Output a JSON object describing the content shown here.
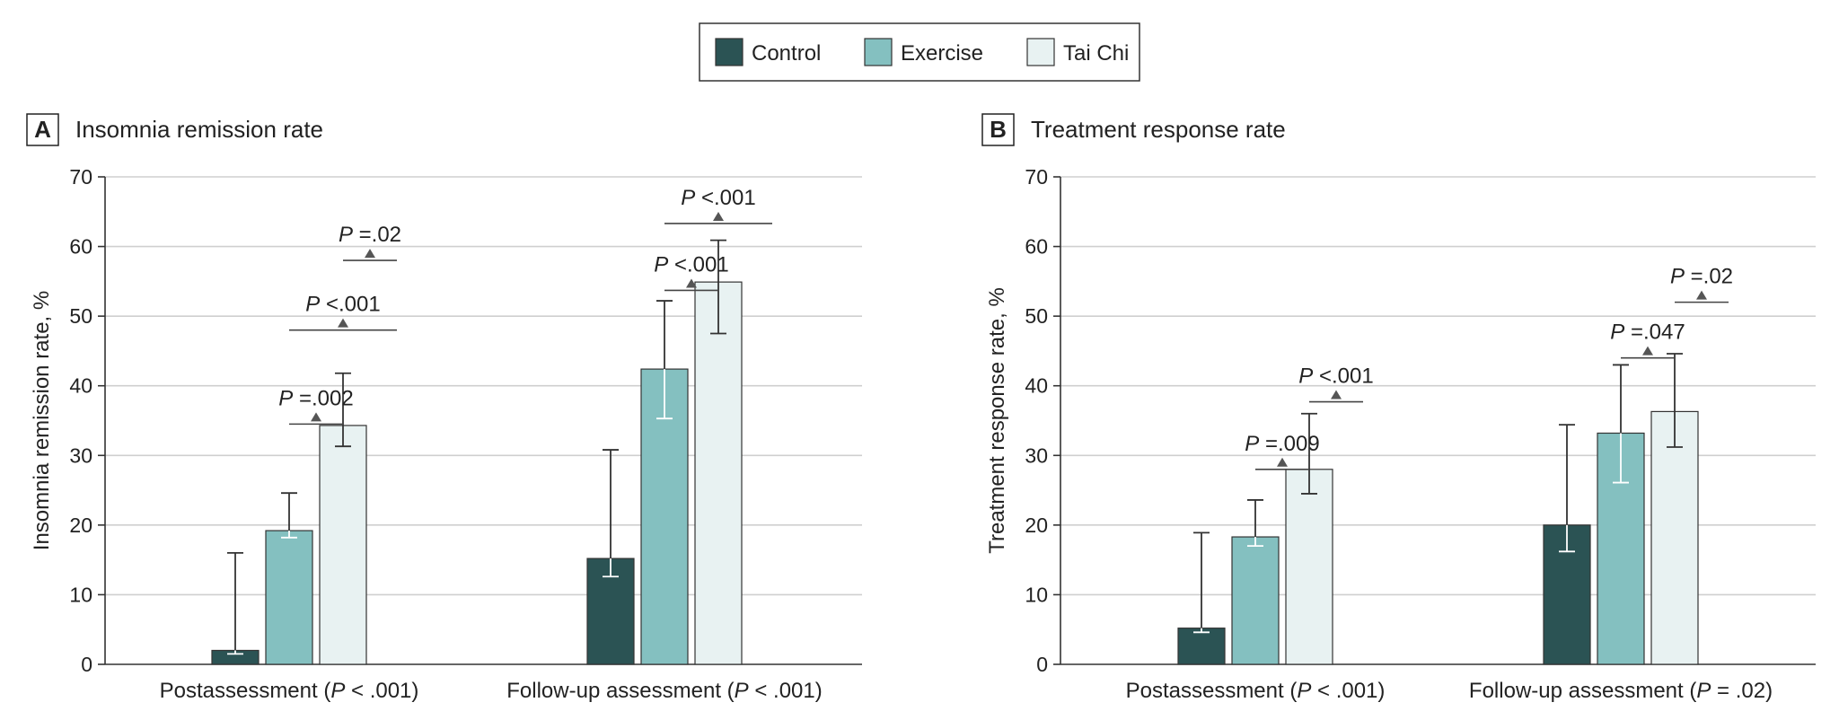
{
  "legend": [
    {
      "label": "Control",
      "color": "#2b5354"
    },
    {
      "label": "Exercise",
      "color": "#84c0c0"
    },
    {
      "label": "Tai Chi",
      "color": "#e8f2f2"
    }
  ],
  "chart_data": [
    {
      "type": "bar",
      "panel_letter": "A",
      "title": "Insomnia remission rate",
      "ylabel": "Insomnia remission rate, %",
      "ylim": [
        0,
        70
      ],
      "yticks": [
        0,
        10,
        20,
        30,
        40,
        50,
        60,
        70
      ],
      "grid": true,
      "groups": [
        {
          "label": "Postassessment (P < .001)",
          "label_parts": [
            "Postassessment (",
            "P",
            " < .001)"
          ],
          "bars": [
            {
              "series": "Control",
              "value": 2.0,
              "ci": [
                1.5,
                16.0
              ]
            },
            {
              "series": "Exercise",
              "value": 19.2,
              "ci": [
                18.2,
                24.6
              ]
            },
            {
              "series": "Tai Chi",
              "value": 34.3,
              "ci": [
                31.3,
                41.8
              ]
            }
          ],
          "comparisons": [
            {
              "from": 1,
              "to": 2,
              "label_p": "P",
              "label_val": " =.002",
              "y": 34.5
            },
            {
              "from": 1,
              "to": 3,
              "label_p": "P",
              "label_val": " <.001",
              "y": 48.0
            },
            {
              "from": 2,
              "to": 3,
              "label_p": "P",
              "label_val": " =.02",
              "y": 58.0
            }
          ]
        },
        {
          "label": "Follow-up assessment (P < .001)",
          "label_parts": [
            "Follow-up assessment (",
            "P",
            " < .001)"
          ],
          "bars": [
            {
              "series": "Control",
              "value": 15.2,
              "ci": [
                12.6,
                30.8
              ]
            },
            {
              "series": "Exercise",
              "value": 42.4,
              "ci": [
                35.3,
                52.2
              ]
            },
            {
              "series": "Tai Chi",
              "value": 54.9,
              "ci": [
                47.5,
                60.9
              ]
            }
          ],
          "comparisons": [
            {
              "from": 1,
              "to": 2,
              "label_p": "P",
              "label_val": " <.001",
              "y": 53.7
            },
            {
              "from": 1,
              "to": 3,
              "label_p": "P",
              "label_val": " <.001",
              "y": 63.3
            }
          ]
        }
      ]
    },
    {
      "type": "bar",
      "panel_letter": "B",
      "title": "Treatment response rate",
      "ylabel": "Treatment response rate, %",
      "ylim": [
        0,
        70
      ],
      "yticks": [
        0,
        10,
        20,
        30,
        40,
        50,
        60,
        70
      ],
      "grid": true,
      "groups": [
        {
          "label": "Postassessment (P < .001)",
          "label_parts": [
            "Postassessment (",
            "P",
            " < .001)"
          ],
          "bars": [
            {
              "series": "Control",
              "value": 5.2,
              "ci": [
                4.6,
                18.9
              ]
            },
            {
              "series": "Exercise",
              "value": 18.3,
              "ci": [
                17.0,
                23.6
              ]
            },
            {
              "series": "Tai Chi",
              "value": 28.0,
              "ci": [
                24.5,
                36.0
              ]
            }
          ],
          "comparisons": [
            {
              "from": 1,
              "to": 2,
              "label_p": "P",
              "label_val": " =.009",
              "y": 28.0
            },
            {
              "from": 2,
              "to": 3,
              "label_p": "P",
              "label_val": " <.001",
              "y": 37.7
            }
          ]
        },
        {
          "label": "Follow-up assessment (P = .02)",
          "label_parts": [
            "Follow-up assessment (",
            "P",
            " = .02)"
          ],
          "bars": [
            {
              "series": "Control",
              "value": 20.0,
              "ci": [
                16.2,
                34.4
              ]
            },
            {
              "series": "Exercise",
              "value": 33.2,
              "ci": [
                26.1,
                43.0
              ]
            },
            {
              "series": "Tai Chi",
              "value": 36.3,
              "ci": [
                31.2,
                44.6
              ]
            }
          ],
          "comparisons": [
            {
              "from": 1,
              "to": 2,
              "label_p": "P",
              "label_val": " =.047",
              "y": 44.0
            },
            {
              "from": 2,
              "to": 3,
              "label_p": "P",
              "label_val": " =.02",
              "y": 52.0
            }
          ]
        }
      ]
    }
  ]
}
